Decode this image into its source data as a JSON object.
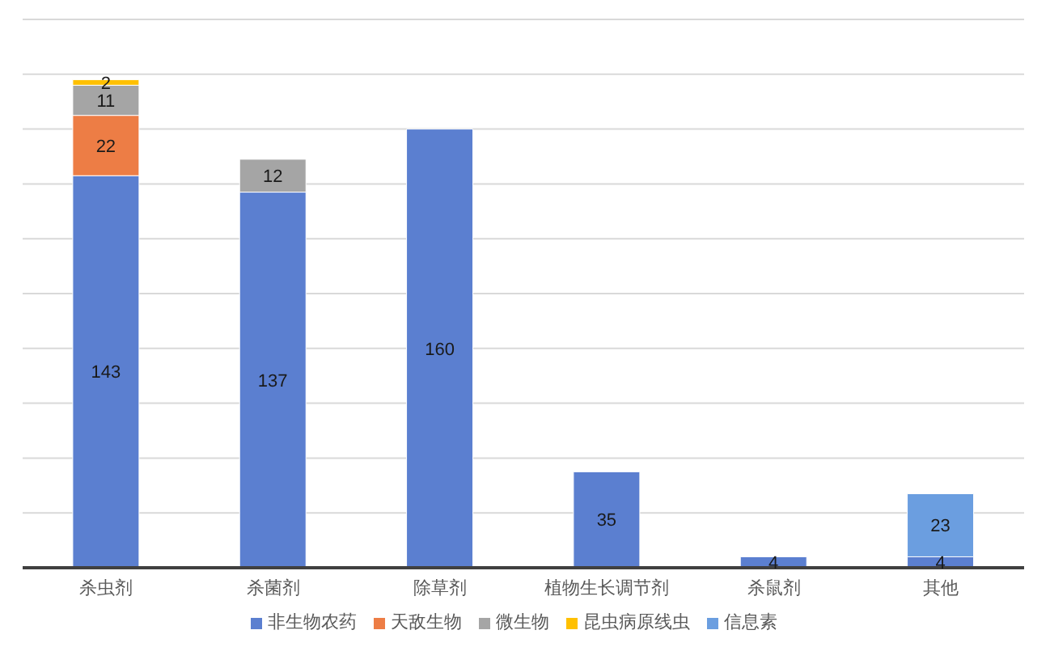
{
  "chart_data": {
    "type": "bar",
    "stacked": true,
    "categories": [
      "杀虫剂",
      "杀菌剂",
      "除草剂",
      "植物生长调节剂",
      "杀鼠剂",
      "其他"
    ],
    "series": [
      {
        "name": "非生物农药",
        "color": "#5b7fd0",
        "values": [
          143,
          137,
          160,
          35,
          4,
          4
        ]
      },
      {
        "name": "天敌生物",
        "color": "#ed7d45",
        "values": [
          22,
          null,
          null,
          null,
          null,
          null
        ]
      },
      {
        "name": "微生物",
        "color": "#a5a5a5",
        "values": [
          11,
          12,
          null,
          null,
          null,
          null
        ]
      },
      {
        "name": "昆虫病原线虫",
        "color": "#ffc000",
        "values": [
          2,
          null,
          null,
          null,
          null,
          null
        ]
      },
      {
        "name": "信息素",
        "color": "#6b9ee0",
        "values": [
          null,
          null,
          null,
          null,
          null,
          23
        ]
      }
    ],
    "tick_labels": "x",
    "grid": "y",
    "legend": "bottom",
    "data_labels": true
  }
}
